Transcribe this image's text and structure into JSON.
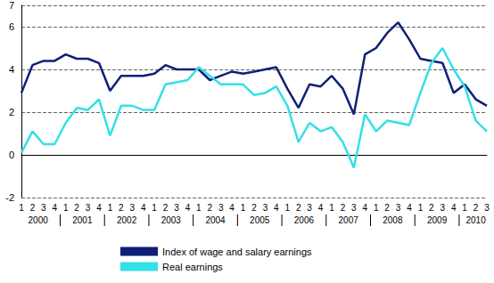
{
  "chart_data": {
    "type": "line",
    "categories": [
      "1",
      "2",
      "3",
      "4",
      "1",
      "2",
      "3",
      "4",
      "1",
      "2",
      "3",
      "4",
      "1",
      "2",
      "3",
      "4",
      "1",
      "2",
      "3",
      "4",
      "1",
      "2",
      "3",
      "4",
      "1",
      "2",
      "3",
      "4",
      "1",
      "2",
      "3",
      "4",
      "1",
      "2",
      "3",
      "4",
      "1",
      "2",
      "3",
      "4",
      "1",
      "2",
      "3"
    ],
    "year_groups": [
      "2000",
      "2001",
      "2002",
      "2003",
      "2004",
      "2005",
      "2006",
      "2007",
      "2008",
      "2009",
      "2010"
    ],
    "series": [
      {
        "name": "Index of wage and salary earnings",
        "color": "#0f1f78",
        "values": [
          2.9,
          4.2,
          4.4,
          4.4,
          4.7,
          4.5,
          4.5,
          4.3,
          3.0,
          3.7,
          3.7,
          3.7,
          3.8,
          4.2,
          4.0,
          4.0,
          4.0,
          3.5,
          3.7,
          3.9,
          3.8,
          3.9,
          4.0,
          4.1,
          3.1,
          2.2,
          3.3,
          3.2,
          3.7,
          3.1,
          1.9,
          4.7,
          5.0,
          5.7,
          6.2,
          5.4,
          4.5,
          4.4,
          4.3,
          2.9,
          3.3,
          2.6,
          2.3
        ]
      },
      {
        "name": "Real earnings",
        "color": "#33e0e8",
        "values": [
          0.1,
          1.1,
          0.5,
          0.5,
          1.5,
          2.2,
          2.1,
          2.6,
          0.9,
          2.3,
          2.3,
          2.1,
          2.1,
          3.3,
          3.4,
          3.5,
          4.1,
          3.7,
          3.3,
          3.3,
          3.3,
          2.8,
          2.9,
          3.2,
          2.3,
          0.6,
          1.5,
          1.1,
          1.3,
          0.6,
          -0.6,
          1.9,
          1.1,
          1.6,
          1.5,
          1.4,
          2.9,
          4.3,
          5.0,
          4.0,
          3.2,
          1.6,
          1.1
        ]
      }
    ],
    "ylim": [
      -2,
      7
    ],
    "yticks": [
      -2,
      0,
      2,
      4,
      6
    ],
    "grid": true,
    "legend": "bottom"
  }
}
